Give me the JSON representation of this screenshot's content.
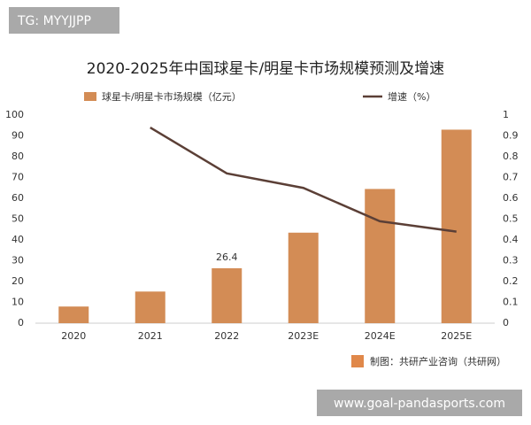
{
  "tag": "TG: MYYJJPP",
  "chart_data": {
    "type": "combo",
    "title": "2020-2025年中国球星卡/明星卡市场规模预测及增速",
    "categories": [
      "2020",
      "2021",
      "2022",
      "2023E",
      "2024E",
      "2025E"
    ],
    "series": [
      {
        "name": "球星卡/明星卡市场规模（亿元）",
        "type": "bar",
        "color": "#d38c55",
        "values": [
          8,
          15.2,
          26.4,
          43.5,
          64.5,
          93
        ],
        "value_labels": [
          null,
          null,
          "26.4",
          null,
          null,
          null
        ]
      },
      {
        "name": "增速（%）",
        "type": "line",
        "axis": "y2",
        "color": "#5b3f36",
        "values": [
          null,
          0.94,
          0.72,
          0.65,
          0.49,
          0.44
        ]
      }
    ],
    "ylim": [
      0,
      100
    ],
    "yticks": [
      0,
      10,
      20,
      30,
      40,
      50,
      60,
      70,
      80,
      90,
      100
    ],
    "y2lim": [
      0,
      1
    ],
    "y2ticks": [
      0,
      0.1,
      0.2,
      0.3,
      0.4,
      0.5,
      0.6,
      0.7,
      0.8,
      0.9,
      1
    ],
    "grid": false,
    "source": "制图：共研产业咨询（共研网）"
  },
  "footer": "www.goal-pandasports.com"
}
